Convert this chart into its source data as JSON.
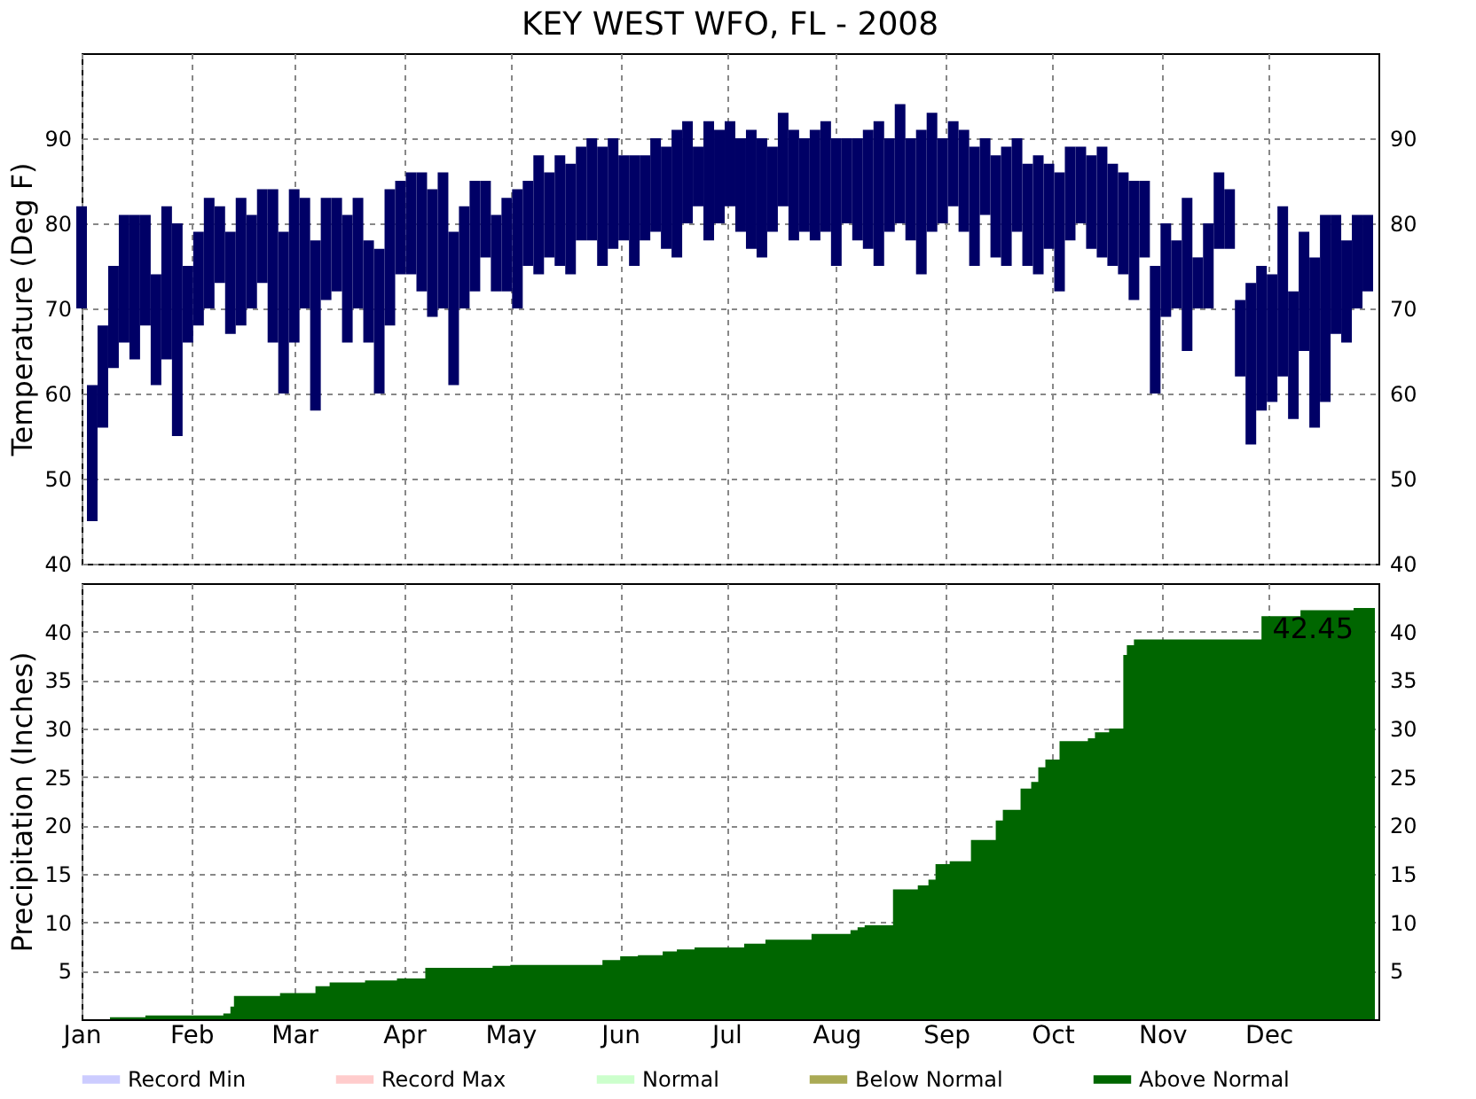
{
  "chart_data": [
    {
      "type": "bar",
      "title": "KEY WEST WFO, FL - 2008",
      "ylabel": "Temperature (Deg F)",
      "color": "#000066",
      "x": [
        "2008-01-01",
        "2008-01-04",
        "2008-01-07",
        "2008-01-10",
        "2008-01-13",
        "2008-01-16",
        "2008-01-19",
        "2008-01-22",
        "2008-01-25",
        "2008-01-28",
        "2008-01-31",
        "2008-02-03",
        "2008-02-06",
        "2008-02-09",
        "2008-02-12",
        "2008-02-15",
        "2008-02-18",
        "2008-02-21",
        "2008-02-24",
        "2008-02-27",
        "2008-03-01",
        "2008-03-04",
        "2008-03-07",
        "2008-03-10",
        "2008-03-13",
        "2008-03-16",
        "2008-03-19",
        "2008-03-22",
        "2008-03-25",
        "2008-03-28",
        "2008-03-31",
        "2008-04-03",
        "2008-04-06",
        "2008-04-09",
        "2008-04-12",
        "2008-04-15",
        "2008-04-18",
        "2008-04-21",
        "2008-04-24",
        "2008-04-27",
        "2008-04-30",
        "2008-05-03",
        "2008-05-06",
        "2008-05-09",
        "2008-05-12",
        "2008-05-15",
        "2008-05-18",
        "2008-05-21",
        "2008-05-24",
        "2008-05-27",
        "2008-05-30",
        "2008-06-02",
        "2008-06-05",
        "2008-06-08",
        "2008-06-11",
        "2008-06-14",
        "2008-06-17",
        "2008-06-20",
        "2008-06-23",
        "2008-06-26",
        "2008-06-29",
        "2008-07-02",
        "2008-07-05",
        "2008-07-08",
        "2008-07-11",
        "2008-07-14",
        "2008-07-17",
        "2008-07-20",
        "2008-07-23",
        "2008-07-26",
        "2008-07-29",
        "2008-08-01",
        "2008-08-04",
        "2008-08-07",
        "2008-08-10",
        "2008-08-13",
        "2008-08-16",
        "2008-08-19",
        "2008-08-22",
        "2008-08-25",
        "2008-08-28",
        "2008-08-31",
        "2008-09-03",
        "2008-09-06",
        "2008-09-09",
        "2008-09-12",
        "2008-09-15",
        "2008-09-18",
        "2008-09-21",
        "2008-09-24",
        "2008-09-27",
        "2008-09-30",
        "2008-10-03",
        "2008-10-06",
        "2008-10-09",
        "2008-10-12",
        "2008-10-15",
        "2008-10-18",
        "2008-10-21",
        "2008-10-24",
        "2008-10-27",
        "2008-10-30",
        "2008-11-02",
        "2008-11-05",
        "2008-11-08",
        "2008-11-11",
        "2008-11-14",
        "2008-11-17",
        "2008-11-20",
        "2008-11-23",
        "2008-11-26",
        "2008-11-29",
        "2008-12-02",
        "2008-12-05",
        "2008-12-08",
        "2008-12-11",
        "2008-12-14",
        "2008-12-17",
        "2008-12-20",
        "2008-12-23",
        "2008-12-26",
        "2008-12-29"
      ],
      "base": [
        70,
        45,
        56,
        63,
        66,
        64,
        68,
        61,
        64,
        55,
        66,
        68,
        70,
        73,
        67,
        68,
        70,
        73,
        66,
        60,
        66,
        70,
        58,
        71,
        72,
        66,
        70,
        66,
        60,
        68,
        74,
        74,
        72,
        69,
        70,
        61,
        70,
        72,
        76,
        72,
        72,
        70,
        75,
        74,
        76,
        75,
        74,
        78,
        78,
        75,
        77,
        78,
        75,
        78,
        79,
        77,
        76,
        80,
        82,
        78,
        80,
        82,
        79,
        77,
        76,
        79,
        82,
        78,
        79,
        78,
        79,
        75,
        80,
        78,
        77,
        75,
        79,
        80,
        78,
        74,
        79,
        80,
        82,
        79,
        75,
        81,
        76,
        75,
        79,
        75,
        74,
        77,
        72,
        78,
        80,
        77,
        76,
        75,
        74,
        71,
        76,
        60,
        69,
        70,
        65,
        70,
        70,
        77,
        77,
        62,
        54,
        58,
        59,
        62,
        57,
        65,
        56,
        59,
        67,
        66,
        70,
        72
      ],
      "values": [
        12,
        16,
        12,
        12,
        15,
        17,
        13,
        13,
        18,
        25,
        9,
        11,
        13,
        9,
        12,
        15,
        11,
        11,
        18,
        19,
        18,
        13,
        20,
        12,
        11,
        15,
        13,
        12,
        17,
        16,
        11,
        12,
        14,
        15,
        16,
        18,
        12,
        13,
        9,
        9,
        11,
        14,
        10,
        14,
        10,
        13,
        13,
        11,
        12,
        14,
        13,
        10,
        13,
        10,
        11,
        12,
        15,
        12,
        7,
        14,
        11,
        10,
        11,
        14,
        14,
        10,
        11,
        13,
        11,
        13,
        13,
        15,
        10,
        12,
        14,
        17,
        11,
        14,
        12,
        17,
        14,
        10,
        10,
        12,
        14,
        9,
        12,
        14,
        11,
        12,
        14,
        10,
        14,
        11,
        9,
        11,
        13,
        12,
        12,
        14,
        9,
        15,
        11,
        8,
        18,
        6,
        10,
        9,
        7,
        9,
        19,
        17,
        15,
        20,
        15,
        14,
        20,
        22,
        14,
        12,
        11,
        9
      ],
      "xlim": [
        "2008-01-01",
        "2009-01-01"
      ],
      "xticks": [
        {
          "value": "2008-01-01",
          "label": null
        },
        {
          "value": "2008-02-01",
          "label": null
        },
        {
          "value": "2008-03-01",
          "label": null
        },
        {
          "value": "2008-04-01",
          "label": null
        },
        {
          "value": "2008-05-01",
          "label": null
        },
        {
          "value": "2008-06-01",
          "label": null
        },
        {
          "value": "2008-07-01",
          "label": null
        },
        {
          "value": "2008-08-01",
          "label": null
        },
        {
          "value": "2008-09-01",
          "label": null
        },
        {
          "value": "2008-10-01",
          "label": null
        },
        {
          "value": "2008-11-01",
          "label": null
        },
        {
          "value": "2008-12-01",
          "label": null
        }
      ],
      "ylim": [
        40,
        100
      ],
      "yticks": [
        40,
        50,
        60,
        70,
        80,
        90
      ],
      "y2lim": [
        40,
        100
      ],
      "y2ticks": [
        40,
        50,
        60,
        70,
        80,
        90
      ],
      "grid": true,
      "tick_labels": "y"
    },
    {
      "type": "area",
      "ylabel": "Precipitation (Inches)",
      "series": [
        {
          "name": "Record Min",
          "color": "#ccccff"
        },
        {
          "name": "Record Max",
          "color": "#ffcccc"
        },
        {
          "name": "Normal",
          "color": "#ccffcc"
        },
        {
          "name": "Below Normal",
          "color": "#aaaa55"
        },
        {
          "name": "Above Normal",
          "color": "#006600",
          "x": [
            "2008-01-01",
            "2008-01-09",
            "2008-01-19",
            "2008-02-10",
            "2008-02-12",
            "2008-02-13",
            "2008-02-26",
            "2008-03-07",
            "2008-03-11",
            "2008-03-21",
            "2008-03-30",
            "2008-04-07",
            "2008-04-26",
            "2008-05-01",
            "2008-05-27",
            "2008-06-01",
            "2008-06-06",
            "2008-06-13",
            "2008-06-17",
            "2008-06-22",
            "2008-07-06",
            "2008-07-12",
            "2008-07-25",
            "2008-08-05",
            "2008-08-07",
            "2008-08-09",
            "2008-08-17",
            "2008-08-24",
            "2008-08-27",
            "2008-08-29",
            "2008-09-02",
            "2008-09-08",
            "2008-09-15",
            "2008-09-17",
            "2008-09-22",
            "2008-09-25",
            "2008-09-27",
            "2008-09-29",
            "2008-10-03",
            "2008-10-11",
            "2008-10-13",
            "2008-10-17",
            "2008-10-21",
            "2008-10-22",
            "2008-10-24",
            "2008-11-29",
            "2008-12-10",
            "2008-12-25",
            "2008-12-31"
          ],
          "values": [
            0.0,
            0.2,
            0.4,
            0.6,
            1.3,
            2.4,
            2.7,
            3.4,
            3.8,
            4.0,
            4.2,
            5.3,
            5.5,
            5.6,
            6.1,
            6.5,
            6.6,
            7.0,
            7.2,
            7.4,
            7.8,
            8.2,
            8.8,
            9.2,
            9.5,
            9.7,
            13.4,
            13.8,
            14.4,
            16.0,
            16.3,
            18.5,
            20.5,
            21.6,
            23.8,
            24.5,
            26.0,
            26.8,
            28.7,
            29.0,
            29.6,
            30.0,
            37.6,
            38.6,
            39.2,
            41.6,
            42.2,
            42.45,
            42.45
          ]
        }
      ],
      "annotations": [
        {
          "text": "42.45",
          "x": "2008-12-31",
          "y": 42.45
        }
      ],
      "xlim": [
        "2008-01-01",
        "2009-01-01"
      ],
      "xticks": [
        {
          "value": "2008-01-01",
          "label": "Jan"
        },
        {
          "value": "2008-02-01",
          "label": "Feb"
        },
        {
          "value": "2008-03-01",
          "label": "Mar"
        },
        {
          "value": "2008-04-01",
          "label": "Apr"
        },
        {
          "value": "2008-05-01",
          "label": "May"
        },
        {
          "value": "2008-06-01",
          "label": "Jun"
        },
        {
          "value": "2008-07-01",
          "label": "Jul"
        },
        {
          "value": "2008-08-01",
          "label": "Aug"
        },
        {
          "value": "2008-09-01",
          "label": "Sep"
        },
        {
          "value": "2008-10-01",
          "label": "Oct"
        },
        {
          "value": "2008-11-01",
          "label": "Nov"
        },
        {
          "value": "2008-12-01",
          "label": "Dec"
        }
      ],
      "ylim": [
        0,
        45
      ],
      "yticks": [
        5,
        10,
        15,
        20,
        25,
        30,
        35,
        40
      ],
      "y2lim": [
        0,
        45
      ],
      "y2ticks": [
        5,
        10,
        15,
        20,
        25,
        30,
        35,
        40
      ],
      "grid": true,
      "legend": "bottom"
    }
  ]
}
